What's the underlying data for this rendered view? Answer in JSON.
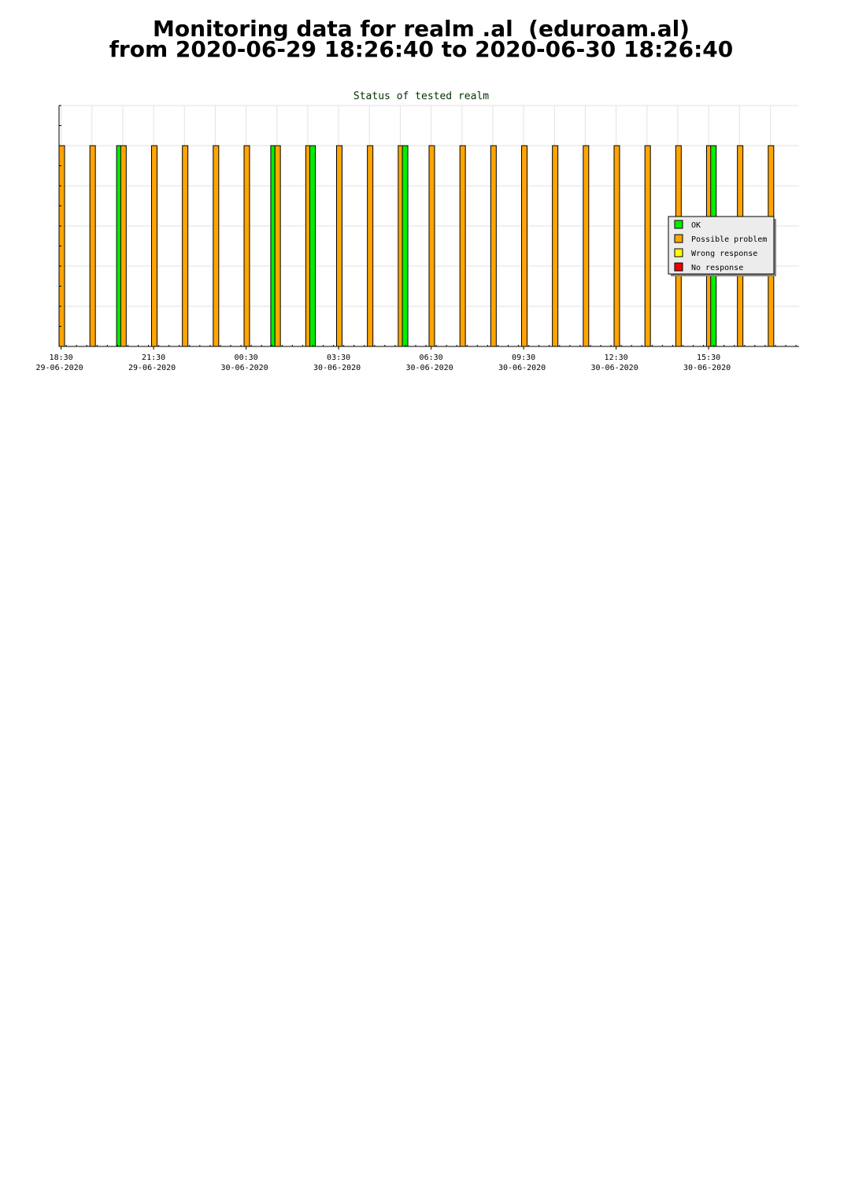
{
  "page": {
    "title_line1": "Monitoring data for realm .al  (eduroam.al)",
    "title_line2": "from 2020-06-29 18:26:40 to 2020-06-30 18:26:40"
  },
  "chart_data": {
    "type": "bar",
    "title": "Status of tested realm",
    "title_color": "#003300",
    "x_range": [
      "2020-06-29 18:26",
      "2020-06-30 18:26"
    ],
    "y_range": [
      0,
      6
    ],
    "grid": true,
    "ticks": [
      {
        "time": "18:30",
        "date": "29-06-2020"
      },
      {
        "time": "21:30",
        "date": "29-06-2020"
      },
      {
        "time": "00:30",
        "date": "30-06-2020"
      },
      {
        "time": "03:30",
        "date": "30-06-2020"
      },
      {
        "time": "06:30",
        "date": "30-06-2020"
      },
      {
        "time": "09:30",
        "date": "30-06-2020"
      },
      {
        "time": "12:30",
        "date": "30-06-2020"
      },
      {
        "time": "15:30",
        "date": "30-06-2020"
      }
    ],
    "legend_placement": "right",
    "legend": [
      {
        "label": "OK",
        "color": "#00ee00"
      },
      {
        "label": "Possible problem",
        "color": "#ffa500"
      },
      {
        "label": "Wrong response",
        "color": "#ffff00"
      },
      {
        "label": "No response",
        "color": "#ee0000"
      }
    ],
    "bars": [
      {
        "time": "2020-06-29 18:26",
        "status": "Possible problem",
        "value": 5
      },
      {
        "time": "2020-06-29 19:26",
        "status": "Possible problem",
        "value": 5
      },
      {
        "time": "2020-06-29 20:18",
        "status": "OK",
        "value": 5
      },
      {
        "time": "2020-06-29 20:26",
        "status": "Possible problem",
        "value": 5
      },
      {
        "time": "2020-06-29 21:26",
        "status": "Possible problem",
        "value": 5
      },
      {
        "time": "2020-06-29 22:26",
        "status": "Possible problem",
        "value": 5
      },
      {
        "time": "2020-06-29 23:26",
        "status": "Possible problem",
        "value": 5
      },
      {
        "time": "2020-06-30 00:26",
        "status": "Possible problem",
        "value": 5
      },
      {
        "time": "2020-06-30 01:18",
        "status": "OK",
        "value": 5
      },
      {
        "time": "2020-06-30 01:26",
        "status": "Possible problem",
        "value": 5
      },
      {
        "time": "2020-06-30 02:26",
        "status": "Possible problem",
        "value": 5
      },
      {
        "time": "2020-06-30 02:34",
        "status": "OK",
        "value": 5
      },
      {
        "time": "2020-06-30 03:26",
        "status": "Possible problem",
        "value": 5
      },
      {
        "time": "2020-06-30 04:26",
        "status": "Possible problem",
        "value": 5
      },
      {
        "time": "2020-06-30 05:26",
        "status": "Possible problem",
        "value": 5
      },
      {
        "time": "2020-06-30 05:34",
        "status": "OK",
        "value": 5
      },
      {
        "time": "2020-06-30 06:26",
        "status": "Possible problem",
        "value": 5
      },
      {
        "time": "2020-06-30 07:26",
        "status": "Possible problem",
        "value": 5
      },
      {
        "time": "2020-06-30 08:26",
        "status": "Possible problem",
        "value": 5
      },
      {
        "time": "2020-06-30 09:26",
        "status": "Possible problem",
        "value": 5
      },
      {
        "time": "2020-06-30 10:26",
        "status": "Possible problem",
        "value": 5
      },
      {
        "time": "2020-06-30 11:26",
        "status": "Possible problem",
        "value": 5
      },
      {
        "time": "2020-06-30 12:26",
        "status": "Possible problem",
        "value": 5
      },
      {
        "time": "2020-06-30 13:26",
        "status": "Possible problem",
        "value": 5
      },
      {
        "time": "2020-06-30 14:26",
        "status": "Possible problem",
        "value": 5
      },
      {
        "time": "2020-06-30 15:26",
        "status": "Possible problem",
        "value": 5
      },
      {
        "time": "2020-06-30 15:34",
        "status": "OK",
        "value": 5
      },
      {
        "time": "2020-06-30 16:26",
        "status": "Possible problem",
        "value": 5
      },
      {
        "time": "2020-06-30 17:26",
        "status": "Possible problem",
        "value": 5
      }
    ]
  }
}
